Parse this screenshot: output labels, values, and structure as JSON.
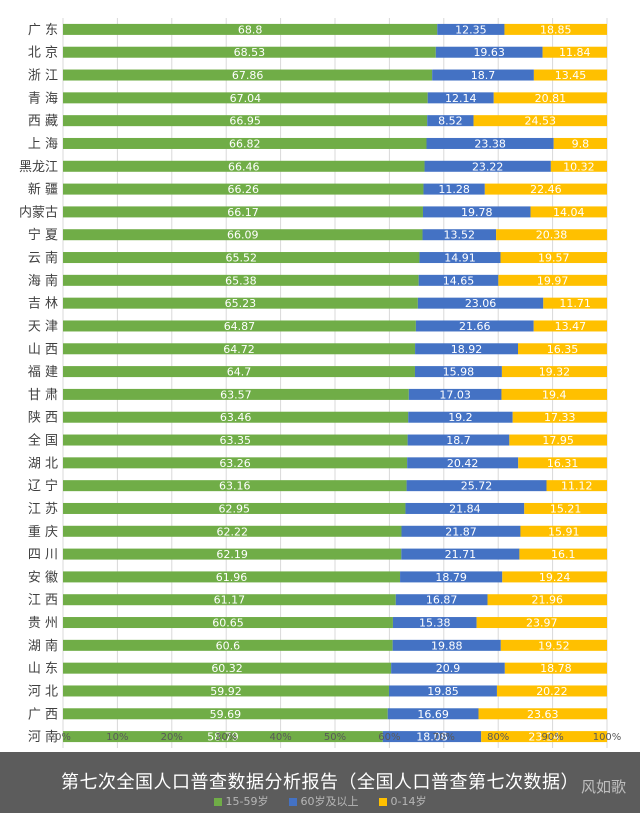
{
  "caption": {
    "title": "第七次全国人口普查数据分析报告（全国人口普查第七次数据）",
    "watermark": "风如歌"
  },
  "chart_data": {
    "type": "bar",
    "orientation": "horizontal",
    "stacked": "percent",
    "title": "",
    "xlabel": "",
    "ylabel": "",
    "xlim": [
      0,
      100
    ],
    "x_ticks": [
      "0%",
      "10%",
      "20%",
      "30%",
      "40%",
      "50%",
      "60%",
      "70%",
      "80%",
      "90%",
      "100%"
    ],
    "grid": true,
    "legend_position": "bottom",
    "categories": [
      "广 东",
      "北 京",
      "浙 江",
      "青 海",
      "西 藏",
      "上 海",
      "黑龙江",
      "新 疆",
      "内蒙古",
      "宁 夏",
      "云 南",
      "海 南",
      "吉 林",
      "天 津",
      "山 西",
      "福 建",
      "甘 肃",
      "陕 西",
      "全 国",
      "湖 北",
      "辽 宁",
      "江 苏",
      "重 庆",
      "四 川",
      "安 徽",
      "江 西",
      "贵 州",
      "湖 南",
      "山 东",
      "河 北",
      "广 西",
      "河 南"
    ],
    "series": [
      {
        "name": "15-59岁",
        "color": "#70ad47",
        "values": [
          68.8,
          68.53,
          67.86,
          67.04,
          66.95,
          66.82,
          66.46,
          66.26,
          66.17,
          66.09,
          65.52,
          65.38,
          65.23,
          64.87,
          64.72,
          64.7,
          63.57,
          63.46,
          63.35,
          63.26,
          63.16,
          62.95,
          62.22,
          62.19,
          61.96,
          61.17,
          60.65,
          60.6,
          60.32,
          59.92,
          59.69,
          58.79
        ]
      },
      {
        "name": "60岁及以上",
        "color": "#4472c4",
        "values": [
          12.35,
          19.63,
          18.7,
          12.14,
          8.52,
          23.38,
          23.22,
          11.28,
          19.78,
          13.52,
          14.91,
          14.65,
          23.06,
          21.66,
          18.92,
          15.98,
          17.03,
          19.2,
          18.7,
          20.42,
          25.72,
          21.84,
          21.87,
          21.71,
          18.79,
          16.87,
          15.38,
          19.88,
          20.9,
          19.85,
          16.69,
          18.08
        ]
      },
      {
        "name": "0-14岁",
        "color": "#ffc000",
        "values": [
          18.85,
          11.84,
          13.45,
          20.81,
          24.53,
          9.8,
          10.32,
          22.46,
          14.04,
          20.38,
          19.57,
          19.97,
          11.71,
          13.47,
          16.35,
          19.32,
          19.4,
          17.33,
          17.95,
          16.31,
          11.12,
          15.21,
          15.91,
          16.1,
          19.24,
          21.96,
          23.97,
          19.52,
          18.78,
          20.22,
          23.63,
          23.14
        ]
      }
    ]
  }
}
